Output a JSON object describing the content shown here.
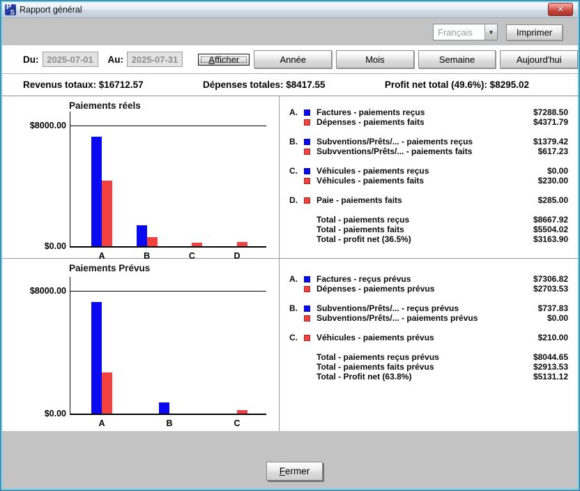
{
  "window": {
    "title": "Rapport général",
    "app_icon": "PS",
    "close_label": "✕"
  },
  "toolbar": {
    "language_value": "Français",
    "dropdown_arrow": "▼",
    "print_label": "Imprimer"
  },
  "controls": {
    "du_label": "Du:",
    "du_value": "2025-07-01",
    "au_label": "Au:",
    "au_value": "2025-07-31",
    "buttons": [
      "Afficher",
      "Année",
      "Mois",
      "Semaine",
      "Aujourd'hui"
    ]
  },
  "summary": {
    "revenues": "Revenus totaux: $16712.57",
    "expenses": "Dépenses totales: $8417.55",
    "profit": "Profit net total (49.6%): $8295.02"
  },
  "colors": {
    "bar_blue": "#0a0af0",
    "bar_red": "#f24141"
  },
  "charts": [
    {
      "type": "bar",
      "title": "Paiements réels",
      "y_top_label": "$8000.00",
      "y_bottom_label": "$0.00",
      "y_max": 8000,
      "categories": [
        {
          "label": "A",
          "blue": 7288.5,
          "red": 4371.79
        },
        {
          "label": "B",
          "blue": 1379.42,
          "red": 617.23
        },
        {
          "label": "C",
          "blue": 0.0,
          "red": 230.0
        },
        {
          "label": "D",
          "blue": null,
          "red": 285.0
        }
      ],
      "legend_groups": [
        {
          "letter": "A.",
          "rows": [
            {
              "color": "blue",
              "label": "Factures - paiements reçus",
              "value": "$7288.50"
            },
            {
              "color": "red",
              "label": "Dépenses - paiements faits",
              "value": "$4371.79"
            }
          ]
        },
        {
          "letter": "B.",
          "rows": [
            {
              "color": "blue",
              "label": "Subventions/Prêts/... - paiements reçus",
              "value": "$1379.42"
            },
            {
              "color": "red",
              "label": "Subvventions/Prêts/... - paiements faits",
              "value": "$617.23"
            }
          ]
        },
        {
          "letter": "C.",
          "rows": [
            {
              "color": "blue",
              "label": "Véhicules - paiements reçus",
              "value": "$0.00"
            },
            {
              "color": "red",
              "label": "Véhicules - paiements faits",
              "value": "$230.00"
            }
          ]
        },
        {
          "letter": "D.",
          "rows": [
            {
              "color": "red",
              "label": "Paie - paiements faits",
              "value": "$285.00"
            }
          ]
        }
      ],
      "totals": [
        {
          "label": "Total - paiements reçus",
          "value": "$8667.92"
        },
        {
          "label": "Total - paiements faits",
          "value": "$5504.02"
        },
        {
          "label": "Total - profit net (36.5%)",
          "value": "$3163.90"
        }
      ]
    },
    {
      "type": "bar",
      "title": "Paiements Prévus",
      "y_top_label": "$8000.00",
      "y_bottom_label": "$0.00",
      "y_max": 8000,
      "categories": [
        {
          "label": "A",
          "blue": 7306.82,
          "red": 2703.53
        },
        {
          "label": "B",
          "blue": 737.83,
          "red": 0.0
        },
        {
          "label": "C",
          "blue": null,
          "red": 210.0
        }
      ],
      "legend_groups": [
        {
          "letter": "A.",
          "rows": [
            {
              "color": "blue",
              "label": "Factures - reçus prévus",
              "value": "$7306.82"
            },
            {
              "color": "red",
              "label": "Dépenses - paiements prévus",
              "value": "$2703.53"
            }
          ]
        },
        {
          "letter": "B.",
          "rows": [
            {
              "color": "blue",
              "label": "Subventions/Prêts/... - reçus prévus",
              "value": "$737.83"
            },
            {
              "color": "red",
              "label": "Subventions/Prêts/... - paiements prévus",
              "value": "$0.00"
            }
          ]
        },
        {
          "letter": "C.",
          "rows": [
            {
              "color": "red",
              "label": "Véhicules - paiements prévus",
              "value": "$210.00"
            }
          ]
        }
      ],
      "totals": [
        {
          "label": "Total - paiements reçus prévus",
          "value": "$8044.65"
        },
        {
          "label": "Total - paiements faits prévus",
          "value": "$2913.53"
        },
        {
          "label": "Total - Profit net (63.8%)",
          "value": "$5131.12"
        }
      ]
    }
  ],
  "footer": {
    "close_label": "Fermer"
  }
}
